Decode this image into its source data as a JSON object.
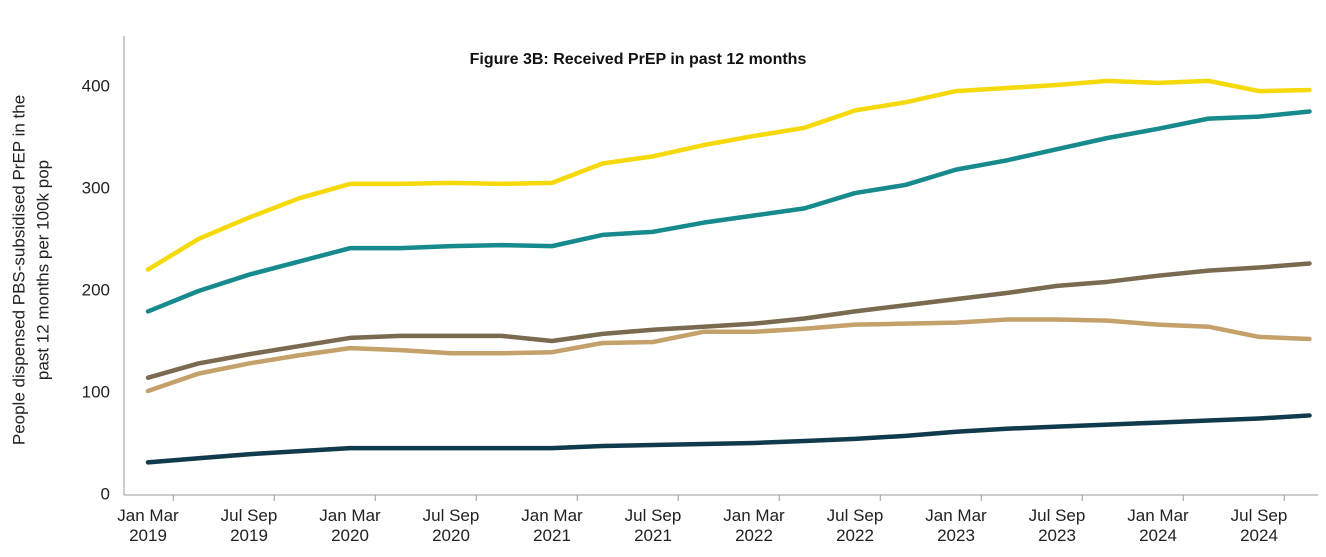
{
  "chart_data": {
    "type": "line",
    "title": "Figure 3B: Received PrEP in past 12 months",
    "y_label": [
      "People  dispensed PBS-subsidised PrEP in the",
      "past 12 months per 100k pop"
    ],
    "categories": [
      "Jan Mar\n2019",
      null,
      "Jul Sep\n2019",
      null,
      "Jan Mar\n2020",
      null,
      "Jul Sep\n2020",
      null,
      "Jan Mar\n2021",
      null,
      "Jul Sep\n2021",
      null,
      "Jan Mar\n2022",
      null,
      "Jul Sep\n2022",
      null,
      "Jan Mar\n2023",
      null,
      "Jul Sep\n2023",
      null,
      "Jan Mar\n2024",
      null,
      "Jul Sep\n2024",
      null
    ],
    "series": [
      {
        "color": "#f5d90a",
        "values": [
          221,
          251,
          272,
          291,
          305,
          305,
          306,
          305,
          306,
          325,
          332,
          343,
          352,
          360,
          377,
          385,
          396,
          399,
          402,
          406,
          404,
          406,
          396,
          397
        ]
      },
      {
        "color": "#168a8c",
        "values": [
          180,
          200,
          216,
          229,
          242,
          242,
          244,
          245,
          244,
          255,
          258,
          267,
          274,
          281,
          296,
          304,
          319,
          328,
          339,
          350,
          359,
          369,
          371,
          376
        ]
      },
      {
        "color": "#7a6a4f",
        "values": [
          115,
          129,
          138,
          146,
          154,
          156,
          156,
          156,
          151,
          158,
          162,
          165,
          168,
          173,
          180,
          186,
          192,
          198,
          205,
          209,
          215,
          220,
          223,
          227
        ]
      },
      {
        "color": "#c4a06a",
        "values": [
          102,
          119,
          129,
          137,
          144,
          142,
          139,
          139,
          140,
          149,
          150,
          160,
          160,
          163,
          167,
          168,
          169,
          172,
          172,
          171,
          167,
          165,
          155,
          153
        ]
      },
      {
        "color": "#0f3b4d",
        "values": [
          32,
          36,
          40,
          43,
          46,
          46,
          46,
          46,
          46,
          48,
          49,
          50,
          51,
          53,
          55,
          58,
          62,
          65,
          67,
          69,
          71,
          73,
          75,
          78
        ]
      }
    ],
    "ylim": [
      0,
      450
    ],
    "yticks": [
      0,
      100,
      200,
      300,
      400
    ],
    "grid": false
  }
}
